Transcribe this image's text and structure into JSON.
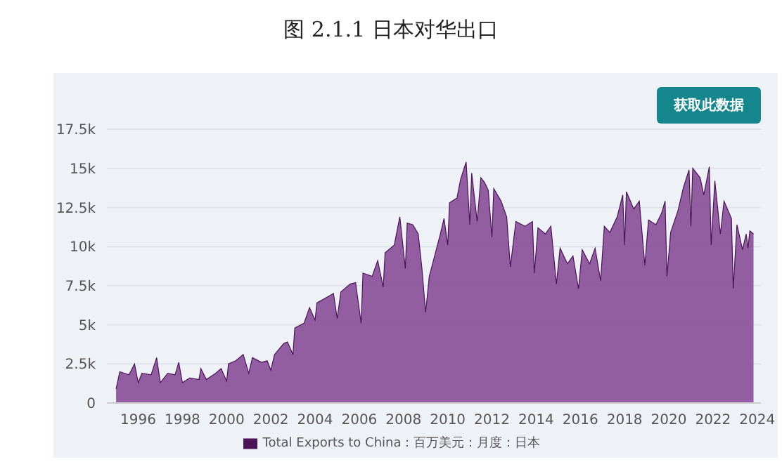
{
  "chart_data": {
    "type": "area",
    "title": "图 2.1.1 日本对华出口",
    "annotations": [
      "获取此数据"
    ],
    "x": [
      "1995-01",
      "1995-03",
      "1995-08",
      "1995-11",
      "1996-01",
      "1996-03",
      "1996-08",
      "1996-11",
      "1997-01",
      "1997-05",
      "1997-09",
      "1997-11",
      "1998-01",
      "1998-05",
      "1998-10",
      "1998-11",
      "1999-02",
      "1999-07",
      "1999-10",
      "2000-01",
      "2000-02",
      "2000-06",
      "2000-10",
      "2001-01",
      "2001-03",
      "2001-08",
      "2001-11",
      "2002-01",
      "2002-03",
      "2002-08",
      "2002-10",
      "2003-01",
      "2003-02",
      "2003-07",
      "2003-10",
      "2004-01",
      "2004-02",
      "2004-08",
      "2004-11",
      "2005-01",
      "2005-03",
      "2005-08",
      "2005-11",
      "2006-02",
      "2006-03",
      "2006-08",
      "2006-11",
      "2007-02",
      "2007-03",
      "2007-08",
      "2007-11",
      "2008-02",
      "2008-03",
      "2008-06",
      "2008-09",
      "2008-11",
      "2009-01",
      "2009-03",
      "2009-07",
      "2009-09",
      "2009-11",
      "2010-01",
      "2010-02",
      "2010-06",
      "2010-08",
      "2010-11",
      "2011-01",
      "2011-02",
      "2011-05",
      "2011-07",
      "2011-09",
      "2011-11",
      "2012-01",
      "2012-02",
      "2012-06",
      "2012-09",
      "2012-11",
      "2013-02",
      "2013-07",
      "2013-11",
      "2013-12",
      "2014-02",
      "2014-06",
      "2014-09",
      "2014-12",
      "2015-02",
      "2015-06",
      "2015-09",
      "2015-12",
      "2016-02",
      "2016-06",
      "2016-09",
      "2016-12",
      "2017-02",
      "2017-05",
      "2017-09",
      "2017-12",
      "2018-01",
      "2018-02",
      "2018-06",
      "2018-09",
      "2018-12",
      "2019-02",
      "2019-06",
      "2019-09",
      "2019-11",
      "2019-12",
      "2020-02",
      "2020-06",
      "2020-09",
      "2020-12",
      "2021-01",
      "2021-02",
      "2021-06",
      "2021-08",
      "2021-11",
      "2021-12",
      "2022-02",
      "2022-05",
      "2022-07",
      "2022-11",
      "2022-12",
      "2023-02",
      "2023-05",
      "2023-07",
      "2023-08",
      "2023-09",
      "2023-11"
    ],
    "series": [
      {
        "name": "Total Exports to China：百万美元：月度：日本",
        "color": "#8b5199",
        "values": [
          900,
          2000,
          1800,
          2500,
          1300,
          1900,
          1800,
          2900,
          1300,
          1900,
          1800,
          2600,
          1300,
          1600,
          1500,
          2200,
          1500,
          1900,
          2200,
          1400,
          2500,
          2700,
          3100,
          1900,
          2900,
          2600,
          2700,
          2100,
          3100,
          3800,
          3900,
          3100,
          4800,
          5100,
          6100,
          5300,
          6400,
          6800,
          7000,
          5400,
          7100,
          7600,
          7700,
          5100,
          8300,
          8100,
          9100,
          7400,
          9600,
          10100,
          11900,
          8600,
          11500,
          11400,
          10800,
          8600,
          5800,
          8100,
          9900,
          10800,
          11800,
          10100,
          12800,
          13100,
          14300,
          15400,
          11400,
          14700,
          11600,
          14400,
          14100,
          13600,
          10600,
          13700,
          12900,
          11900,
          8700,
          11600,
          11300,
          11600,
          8300,
          11200,
          10800,
          11300,
          7600,
          9900,
          8900,
          9400,
          7300,
          9800,
          8900,
          9900,
          7800,
          11300,
          10900,
          11900,
          13300,
          10100,
          13500,
          12400,
          12900,
          8800,
          11700,
          11400,
          12100,
          12900,
          8100,
          10900,
          12300,
          13800,
          14900,
          11300,
          15000,
          14400,
          13300,
          15100,
          10100,
          14200,
          10800,
          12900,
          11800,
          7300,
          11400,
          9800,
          10800,
          9900,
          11000,
          10800
        ]
      }
    ],
    "xlim": [
      "1994-08",
      "2024-03"
    ],
    "xticks": [
      "1996",
      "1998",
      "2000",
      "2002",
      "2004",
      "2006",
      "2008",
      "2010",
      "2012",
      "2014",
      "2016",
      "2018",
      "2020",
      "2022",
      "2024"
    ],
    "ylim": [
      0,
      17500
    ],
    "yticks": [
      0,
      {
        "value": 2500,
        "label": "2.5k"
      },
      {
        "value": 5000,
        "label": "5k"
      },
      {
        "value": 7500,
        "label": "7.5k"
      },
      {
        "value": 10000,
        "label": "10k"
      },
      {
        "value": 12500,
        "label": "12.5k"
      },
      {
        "value": 15000,
        "label": "15k"
      },
      {
        "value": 17500,
        "label": "17.5k"
      }
    ],
    "grid": "y",
    "legend": "bottom"
  }
}
